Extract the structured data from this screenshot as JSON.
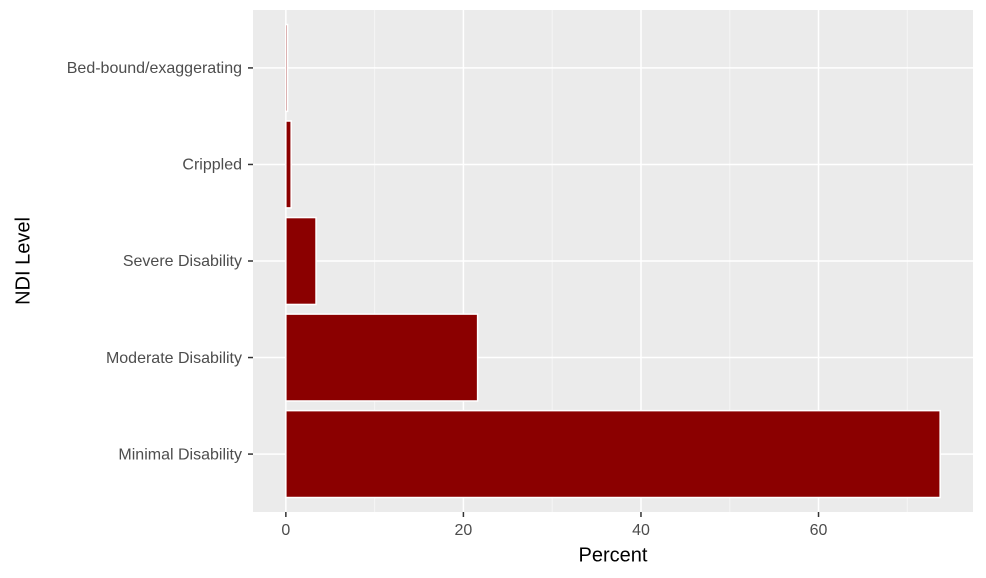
{
  "chart_data": {
    "type": "barh",
    "x_label": "Percent",
    "y_label": "NDI Level",
    "categories": [
      "Minimal Disability",
      "Moderate Disability",
      "Severe Disability",
      "Crippled",
      "Bed-bound/exaggerating"
    ],
    "values": [
      73.7,
      21.6,
      3.4,
      0.6,
      0.2
    ],
    "color": "#8b0000",
    "xlim": [
      -3.7,
      77.4
    ],
    "xticks": [
      0,
      20,
      40,
      60
    ],
    "xminor": [
      10,
      30,
      50,
      70
    ],
    "grid": true
  }
}
